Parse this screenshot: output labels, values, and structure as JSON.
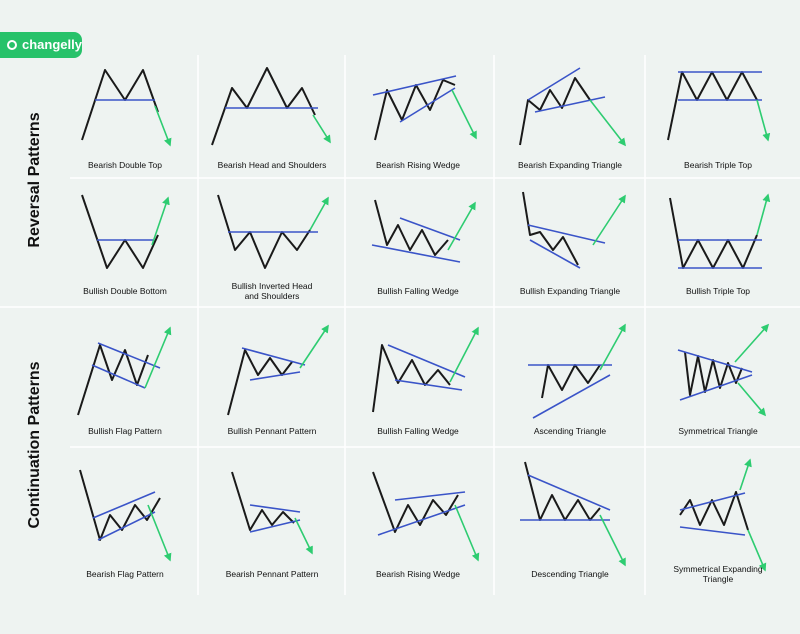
{
  "logo": "changelly",
  "sections": [
    {
      "title": "Reversal Patterns",
      "patterns": [
        "Bearish Double Top",
        "Bearish Head and Shoulders",
        "Bearish Rising Wedge",
        "Bearish Expanding Triangle",
        "Bearish Triple Top",
        "Bullish Double Bottom",
        "Bullish Inverted Head and Shoulders",
        "Bullish Falling Wedge",
        "Bullish Expanding Triangle",
        "Bullish Triple Top"
      ]
    },
    {
      "title": "Continuation Patterns",
      "patterns": [
        "Bullish Flag Pattern",
        "Bullish Pennant Pattern",
        "Bullish Falling Wedge",
        "Ascending Triangle",
        "Symmetrical Triangle",
        "Bearish Flag Pattern",
        "Bearish Pennant Pattern",
        "Bearish Rising Wedge",
        "Descending Triangle",
        "Symmetrical Expanding Triangle"
      ]
    }
  ]
}
